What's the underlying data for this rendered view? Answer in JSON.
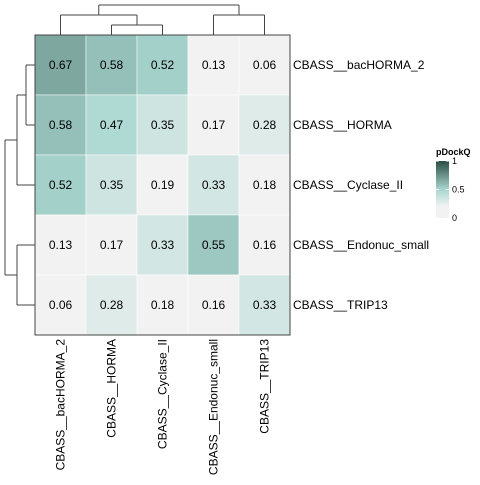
{
  "chart_data": {
    "type": "heatmap",
    "title": "",
    "rows": [
      "CBASS__bacHORMA_2",
      "CBASS__HORMA",
      "CBASS__Cyclase_II",
      "CBASS__Endonuc_small",
      "CBASS__TRIP13"
    ],
    "columns": [
      "CBASS__bacHORMA_2",
      "CBASS__HORMA",
      "CBASS__Cyclase_II",
      "CBASS__Endonuc_small",
      "CBASS__TRIP13"
    ],
    "values": [
      [
        0.67,
        0.58,
        0.52,
        0.13,
        0.06
      ],
      [
        0.58,
        0.47,
        0.35,
        0.17,
        0.28
      ],
      [
        0.52,
        0.35,
        0.19,
        0.33,
        0.18
      ],
      [
        0.13,
        0.17,
        0.33,
        0.55,
        0.16
      ],
      [
        0.06,
        0.28,
        0.18,
        0.16,
        0.33
      ]
    ],
    "cell_labels": [
      [
        "0.67",
        "0.58",
        "0.52",
        "0.13",
        "0.06"
      ],
      [
        "0.58",
        "0.47",
        "0.35",
        "0.17",
        "0.28"
      ],
      [
        "0.52",
        "0.35",
        "0.19",
        "0.33",
        "0.18"
      ],
      [
        "0.13",
        "0.17",
        "0.33",
        "0.55",
        "0.16"
      ],
      [
        "0.06",
        "0.28",
        "0.18",
        "0.16",
        "0.33"
      ]
    ],
    "color_scale": {
      "domain": [
        0,
        0.2,
        0.5,
        1
      ],
      "colors": [
        "#f2f2f2",
        "#f2f2f2",
        "#a8d6cf",
        "#2b4c44"
      ]
    },
    "legend": {
      "title": "pDockQ",
      "ticks": [
        "0",
        "0.5",
        "1"
      ],
      "tick_values": [
        0,
        0.5,
        1
      ],
      "placement": "right"
    },
    "dendrogram": {
      "rows": "left",
      "columns": "top"
    }
  }
}
